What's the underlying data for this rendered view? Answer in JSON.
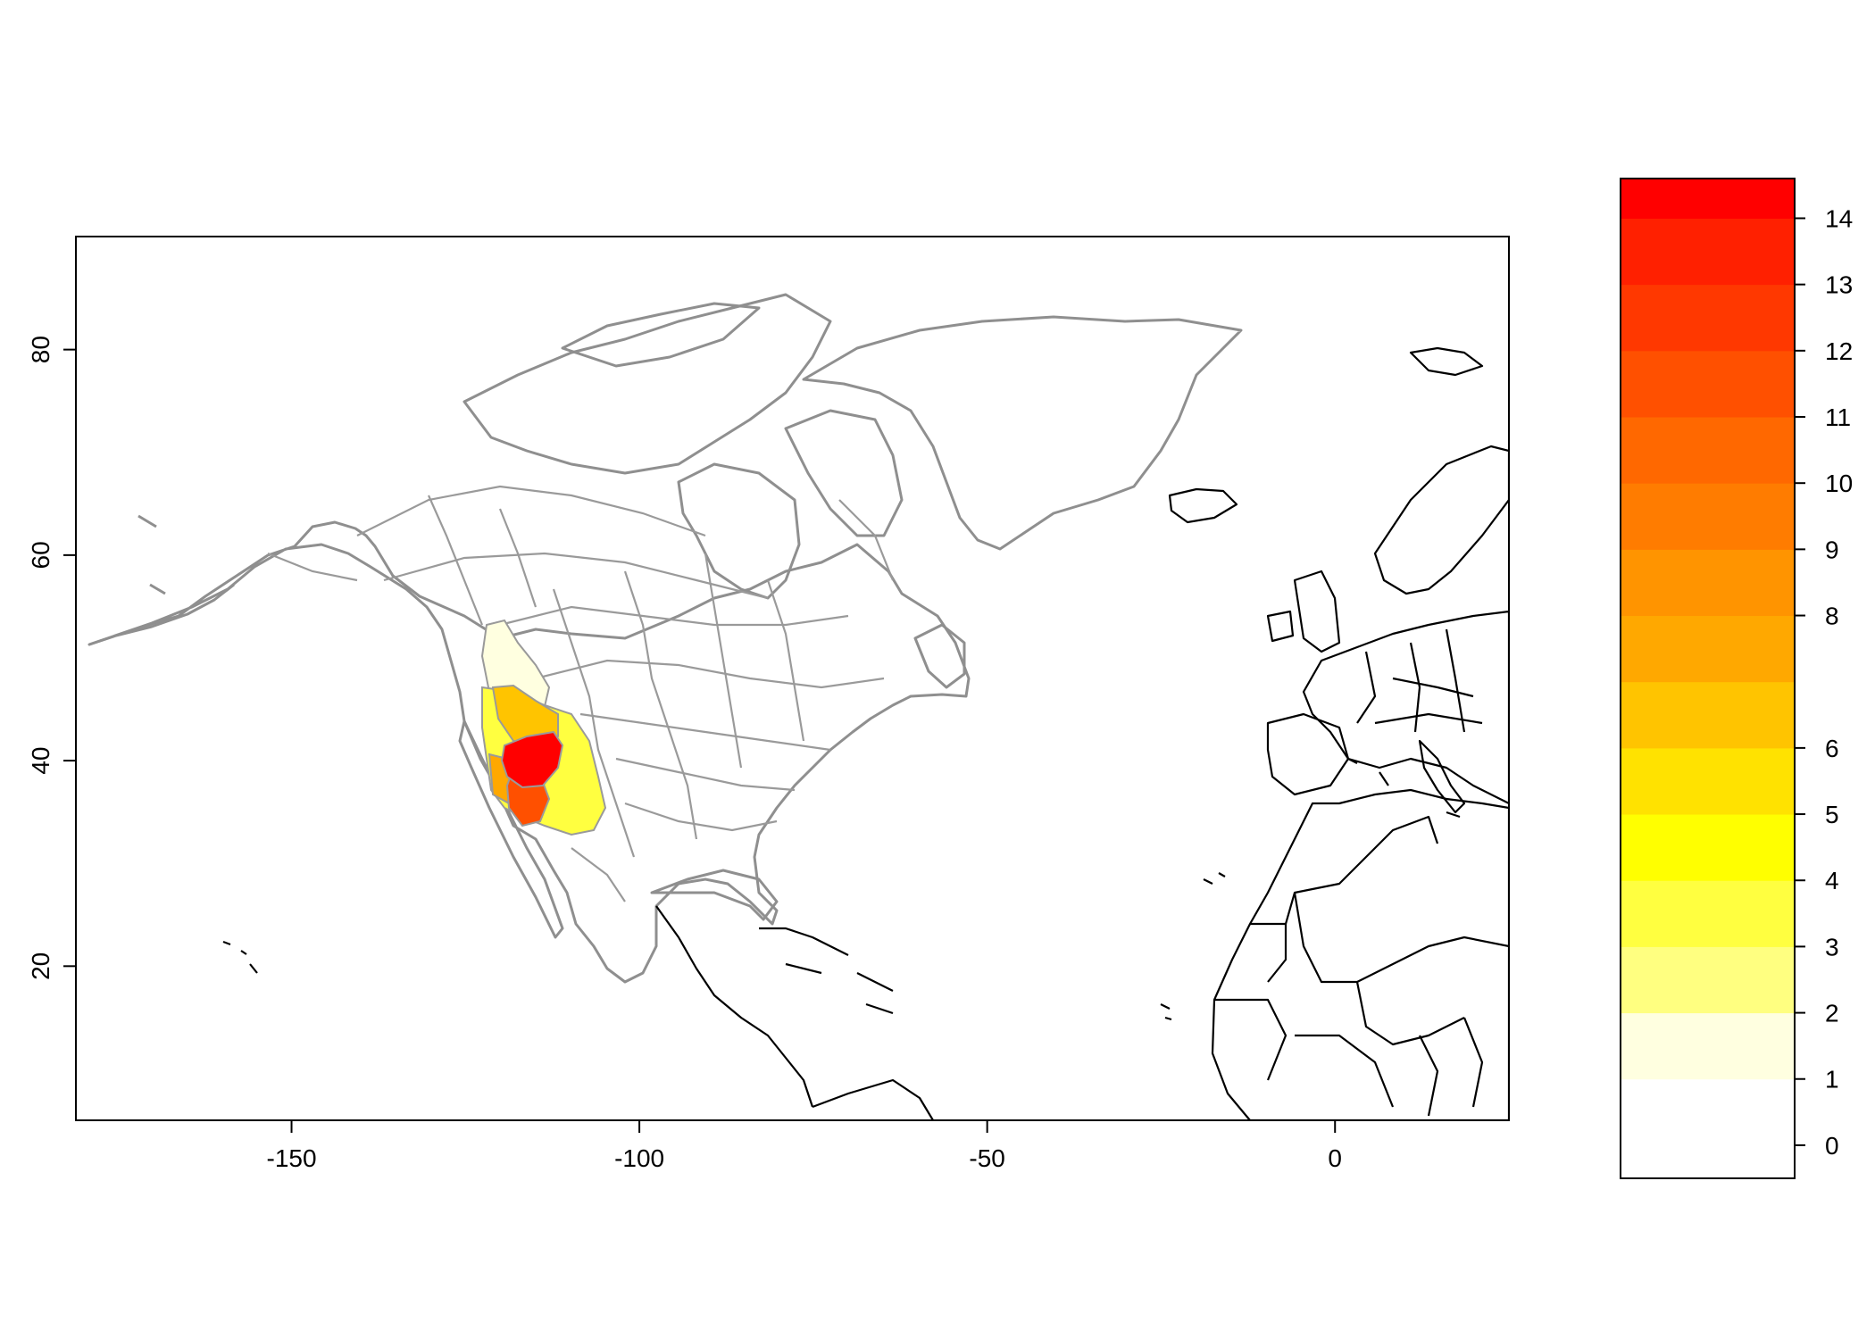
{
  "chart_data": {
    "type": "heatmap",
    "title": "",
    "xlabel": "",
    "ylabel": "",
    "xlim": [
      -181,
      25
    ],
    "ylim": [
      5,
      91
    ],
    "x_ticks": [
      -150,
      -100,
      -50,
      0
    ],
    "y_ticks": [
      20,
      40,
      60,
      80
    ],
    "grid": false,
    "legend": {
      "type": "colorbar",
      "placement": "right",
      "range": [
        -0.5,
        14.6
      ],
      "ticks": [
        0,
        1,
        2,
        3,
        4,
        5,
        6,
        8,
        9,
        10,
        11,
        12,
        13,
        14
      ],
      "bands": [
        {
          "from": -0.5,
          "to": 1.0,
          "color": "#FFFFFF"
        },
        {
          "from": 1.0,
          "to": 2.0,
          "color": "#FFFFE0"
        },
        {
          "from": 2.0,
          "to": 3.0,
          "color": "#FFFF80"
        },
        {
          "from": 3.0,
          "to": 4.0,
          "color": "#FFFF40"
        },
        {
          "from": 4.0,
          "to": 5.0,
          "color": "#FFFF00"
        },
        {
          "from": 5.0,
          "to": 6.0,
          "color": "#FFE200"
        },
        {
          "from": 6.0,
          "to": 7.0,
          "color": "#FFC400"
        },
        {
          "from": 7.0,
          "to": 8.0,
          "color": "#FFA800"
        },
        {
          "from": 8.0,
          "to": 9.0,
          "color": "#FF9400"
        },
        {
          "from": 9.0,
          "to": 10.0,
          "color": "#FF7C00"
        },
        {
          "from": 10.0,
          "to": 11.0,
          "color": "#FF6800"
        },
        {
          "from": 11.0,
          "to": 12.0,
          "color": "#FF5000"
        },
        {
          "from": 12.0,
          "to": 13.0,
          "color": "#FF3800"
        },
        {
          "from": 13.0,
          "to": 14.0,
          "color": "#FF2000"
        },
        {
          "from": 14.0,
          "to": 14.6,
          "color": "#FF0000"
        }
      ]
    },
    "hotspot": {
      "center_lon": -115,
      "center_lat": 40,
      "levels": [
        {
          "value": 1,
          "color": "#FFFFE0"
        },
        {
          "value": 3,
          "color": "#FFFF40"
        },
        {
          "value": 7,
          "color": "#FFC400"
        },
        {
          "value": 8,
          "color": "#FFA800"
        },
        {
          "value": 12,
          "color": "#FF5000"
        },
        {
          "value": 14,
          "color": "#FF0000"
        }
      ]
    },
    "colors": {
      "north_america_outline": "#8f8f8f",
      "other_countries_outline": "#000000",
      "frame": "#000000"
    }
  }
}
